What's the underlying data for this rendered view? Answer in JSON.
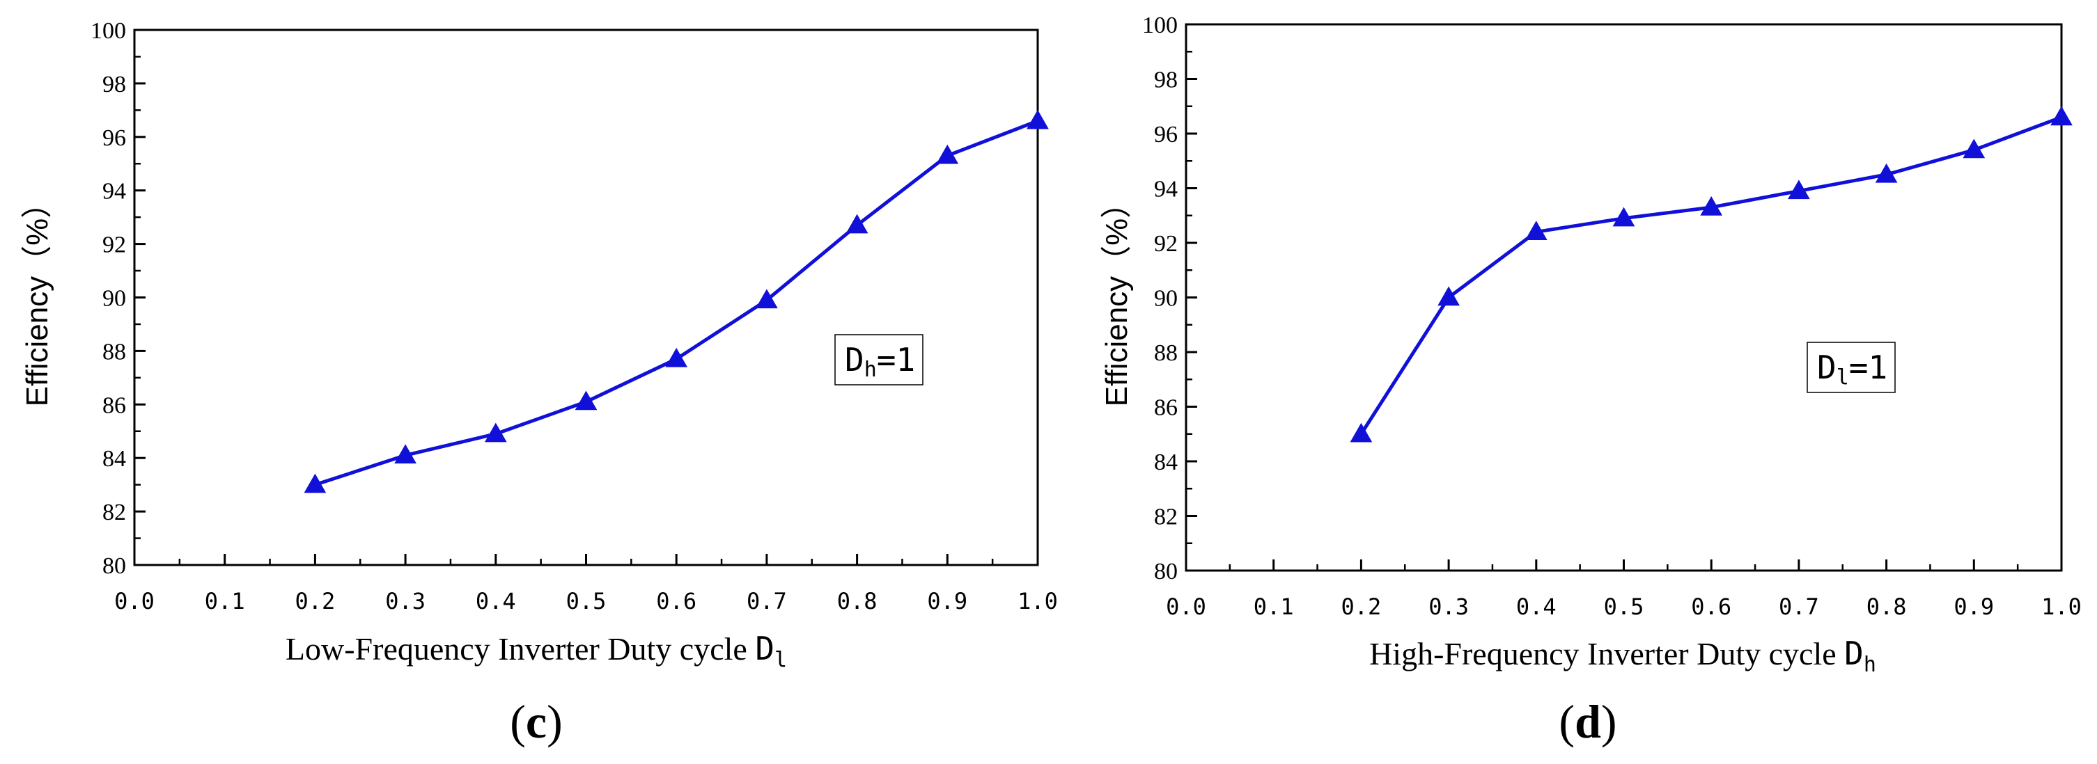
{
  "chart_data": [
    {
      "type": "line",
      "panel_label": "c",
      "xlabel": "Low-Frequency Inverter Duty cycle",
      "xlabel_symbol": "D",
      "xlabel_sub": "l",
      "ylabel": "Efficiency（%）",
      "xlim": [
        0.0,
        1.0
      ],
      "ylim": [
        80,
        100
      ],
      "xticks": [
        "0.0",
        "0.1",
        "0.2",
        "0.3",
        "0.4",
        "0.5",
        "0.6",
        "0.7",
        "0.8",
        "0.9",
        "1.0"
      ],
      "yticks": [
        "80",
        "82",
        "84",
        "86",
        "88",
        "90",
        "92",
        "94",
        "96",
        "98",
        "100"
      ],
      "annotation": {
        "symbol": "D",
        "sub": "h",
        "rest": "=1"
      },
      "series": [
        {
          "name": "Efficiency",
          "color": "#1010d8",
          "marker": "triangle",
          "x": [
            0.2,
            0.3,
            0.4,
            0.5,
            0.6,
            0.7,
            0.8,
            0.9,
            1.0
          ],
          "y": [
            83.0,
            84.1,
            84.9,
            86.1,
            87.7,
            89.9,
            92.7,
            95.3,
            96.6
          ]
        }
      ]
    },
    {
      "type": "line",
      "panel_label": "d",
      "xlabel": "High-Frequency Inverter Duty cycle",
      "xlabel_symbol": "D",
      "xlabel_sub": "h",
      "ylabel": "Efficiency（%）",
      "xlim": [
        0.0,
        1.0
      ],
      "ylim": [
        80,
        100
      ],
      "xticks": [
        "0.0",
        "0.1",
        "0.2",
        "0.3",
        "0.4",
        "0.5",
        "0.6",
        "0.7",
        "0.8",
        "0.9",
        "1.0"
      ],
      "yticks": [
        "80",
        "82",
        "84",
        "86",
        "88",
        "90",
        "92",
        "94",
        "96",
        "98",
        "100"
      ],
      "annotation": {
        "symbol": "D",
        "sub": "l",
        "rest": "=1"
      },
      "series": [
        {
          "name": "Efficiency",
          "color": "#1010d8",
          "marker": "triangle",
          "x": [
            0.2,
            0.3,
            0.4,
            0.5,
            0.6,
            0.7,
            0.8,
            0.9,
            1.0
          ],
          "y": [
            85.0,
            90.0,
            92.4,
            92.9,
            93.3,
            93.9,
            94.5,
            95.4,
            96.6
          ]
        }
      ]
    }
  ]
}
